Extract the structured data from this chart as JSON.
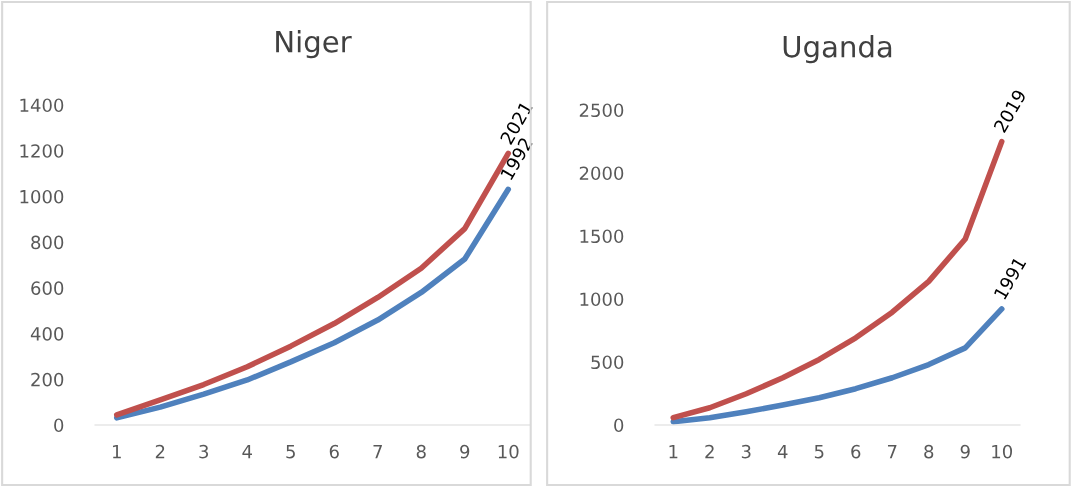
{
  "chart_data": [
    {
      "type": "line",
      "title": "Niger",
      "categories": [
        "1",
        "2",
        "3",
        "4",
        "5",
        "6",
        "7",
        "8",
        "9",
        "10"
      ],
      "ylim": [
        0,
        1400
      ],
      "yticks": [
        0,
        200,
        400,
        600,
        800,
        1000,
        1200,
        1400
      ],
      "grid": false,
      "legend": false,
      "marker": "none",
      "line_style": "solid",
      "series": [
        {
          "name": "1992",
          "color": "#4f81bd",
          "values": [
            31,
            78,
            135,
            197,
            276,
            360,
            459,
            580,
            726,
            1031
          ]
        },
        {
          "name": "2021",
          "color": "#c0504d",
          "values": [
            44,
            110,
            177,
            255,
            345,
            444,
            558,
            686,
            859,
            1188
          ]
        }
      ]
    },
    {
      "type": "line",
      "title": "Uganda",
      "categories": [
        "1",
        "2",
        "3",
        "4",
        "5",
        "6",
        "7",
        "8",
        "9",
        "10"
      ],
      "ylim": [
        0,
        2500
      ],
      "yticks": [
        0,
        500,
        1000,
        1500,
        2000,
        2500
      ],
      "grid": false,
      "legend": false,
      "marker": "none",
      "line_style": "solid",
      "series": [
        {
          "name": "1991",
          "color": "#4f81bd",
          "values": [
            26,
            58,
            106,
            158,
            216,
            288,
            375,
            480,
            612,
            921
          ]
        },
        {
          "name": "2019",
          "color": "#c0504d",
          "values": [
            58,
            137,
            248,
            375,
            520,
            692,
            895,
            1140,
            1476,
            2249
          ]
        }
      ]
    }
  ]
}
